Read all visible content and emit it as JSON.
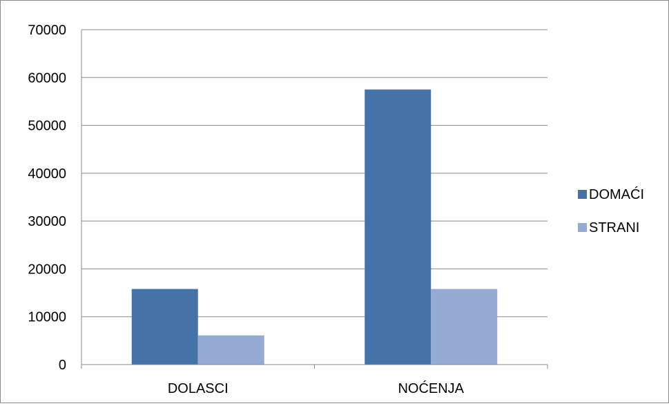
{
  "chart_data": {
    "type": "bar",
    "title": "",
    "xlabel": "",
    "ylabel": "",
    "categories": [
      "DOLASCI",
      "NOĆENJA"
    ],
    "series": [
      {
        "name": "DOMAĆI",
        "values": [
          15800,
          57500
        ],
        "color": "#4572A7"
      },
      {
        "name": "STRANI",
        "values": [
          6100,
          15800
        ],
        "color": "#95ABD4"
      }
    ],
    "ylim": [
      0,
      70000
    ],
    "yticks": [
      0,
      10000,
      20000,
      30000,
      40000,
      50000,
      60000,
      70000
    ],
    "ytick_labels": [
      "0",
      "10000",
      "20000",
      "30000",
      "40000",
      "50000",
      "60000",
      "70000"
    ],
    "grid": true,
    "legend_position": "right"
  }
}
